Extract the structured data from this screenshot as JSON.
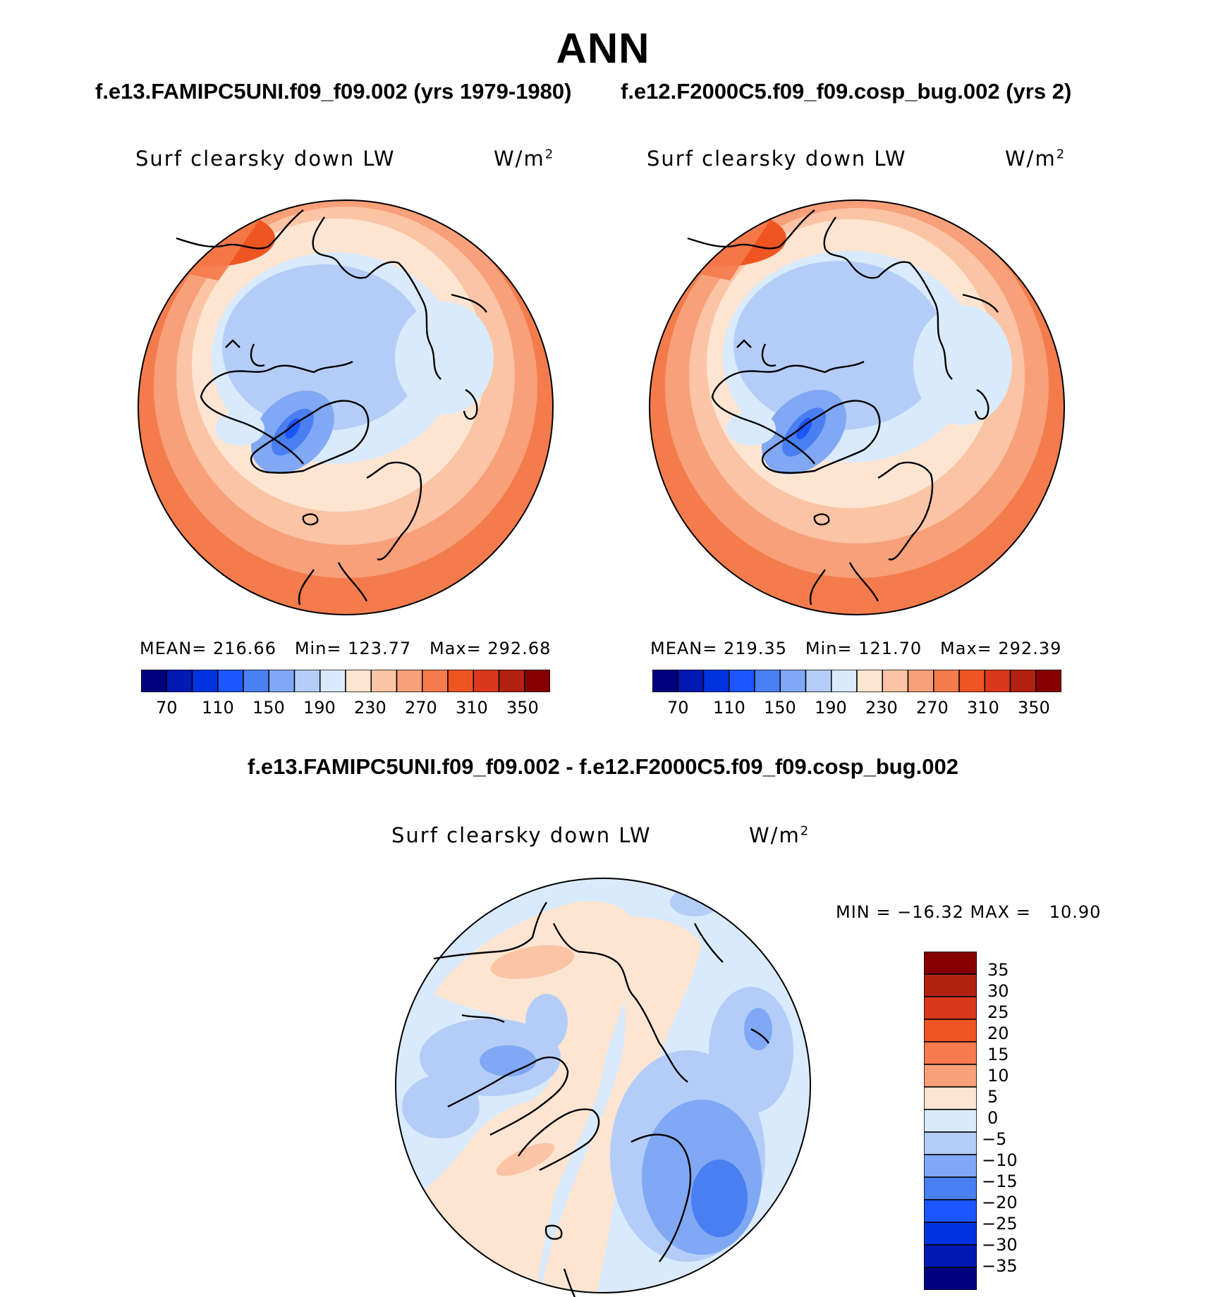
{
  "figure": {
    "season": "ANN",
    "case_a_label": "f.e13.FAMIPC5UNI.f09_f09.002 (yrs 1979-1980)",
    "case_b_label": "f.e12.F2000C5.f09_f09.cosp_bug.002 (yrs 2)",
    "diff_title": "f.e13.FAMIPC5UNI.f09_f09.002 - f.e12.F2000C5.f09_f09.cosp_bug.002"
  },
  "panels": [
    {
      "variable": "Surf clearsky down LW",
      "units": "W/m",
      "units_sup": "2",
      "stats": "MEAN= 216.66   Min= 123.77   Max= 292.68"
    },
    {
      "variable": "Surf clearsky down LW",
      "units": "W/m",
      "units_sup": "2",
      "stats": "MEAN= 219.35   Min= 121.70   Max= 292.39"
    }
  ],
  "diff_panel": {
    "variable": "Surf clearsky down LW",
    "units": "W/m",
    "units_sup": "2",
    "stats": "MIN = −16.32 MAX =   10.90"
  },
  "colorbar_abs": {
    "colors": [
      "#00007f",
      "#0019b3",
      "#0033e0",
      "#1a57ff",
      "#4a7ff2",
      "#80a8f5",
      "#b3cdf8",
      "#d9eafc",
      "#fde5d2",
      "#fbc4a4",
      "#f7a07a",
      "#f47b4c",
      "#ef5522",
      "#d9391a",
      "#b32210",
      "#870000"
    ],
    "tick_labels": [
      "70",
      "110",
      "150",
      "190",
      "230",
      "270",
      "310",
      "350"
    ]
  },
  "colorbar_diff": {
    "colors": [
      "#870000",
      "#b32210",
      "#d9391a",
      "#ef5522",
      "#f47b4c",
      "#f7a07a",
      "#fde5d2",
      "#d9eafc",
      "#b3cdf8",
      "#80a8f5",
      "#4a7ff2",
      "#1a57ff",
      "#0033e0",
      "#0019b3",
      "#00007f"
    ],
    "tick_labels": [
      "35",
      "30",
      "25",
      "20",
      "15",
      "10",
      "5",
      "0",
      "−5",
      "−10",
      "−15",
      "−20",
      "−25",
      "−30",
      "−35"
    ]
  }
}
